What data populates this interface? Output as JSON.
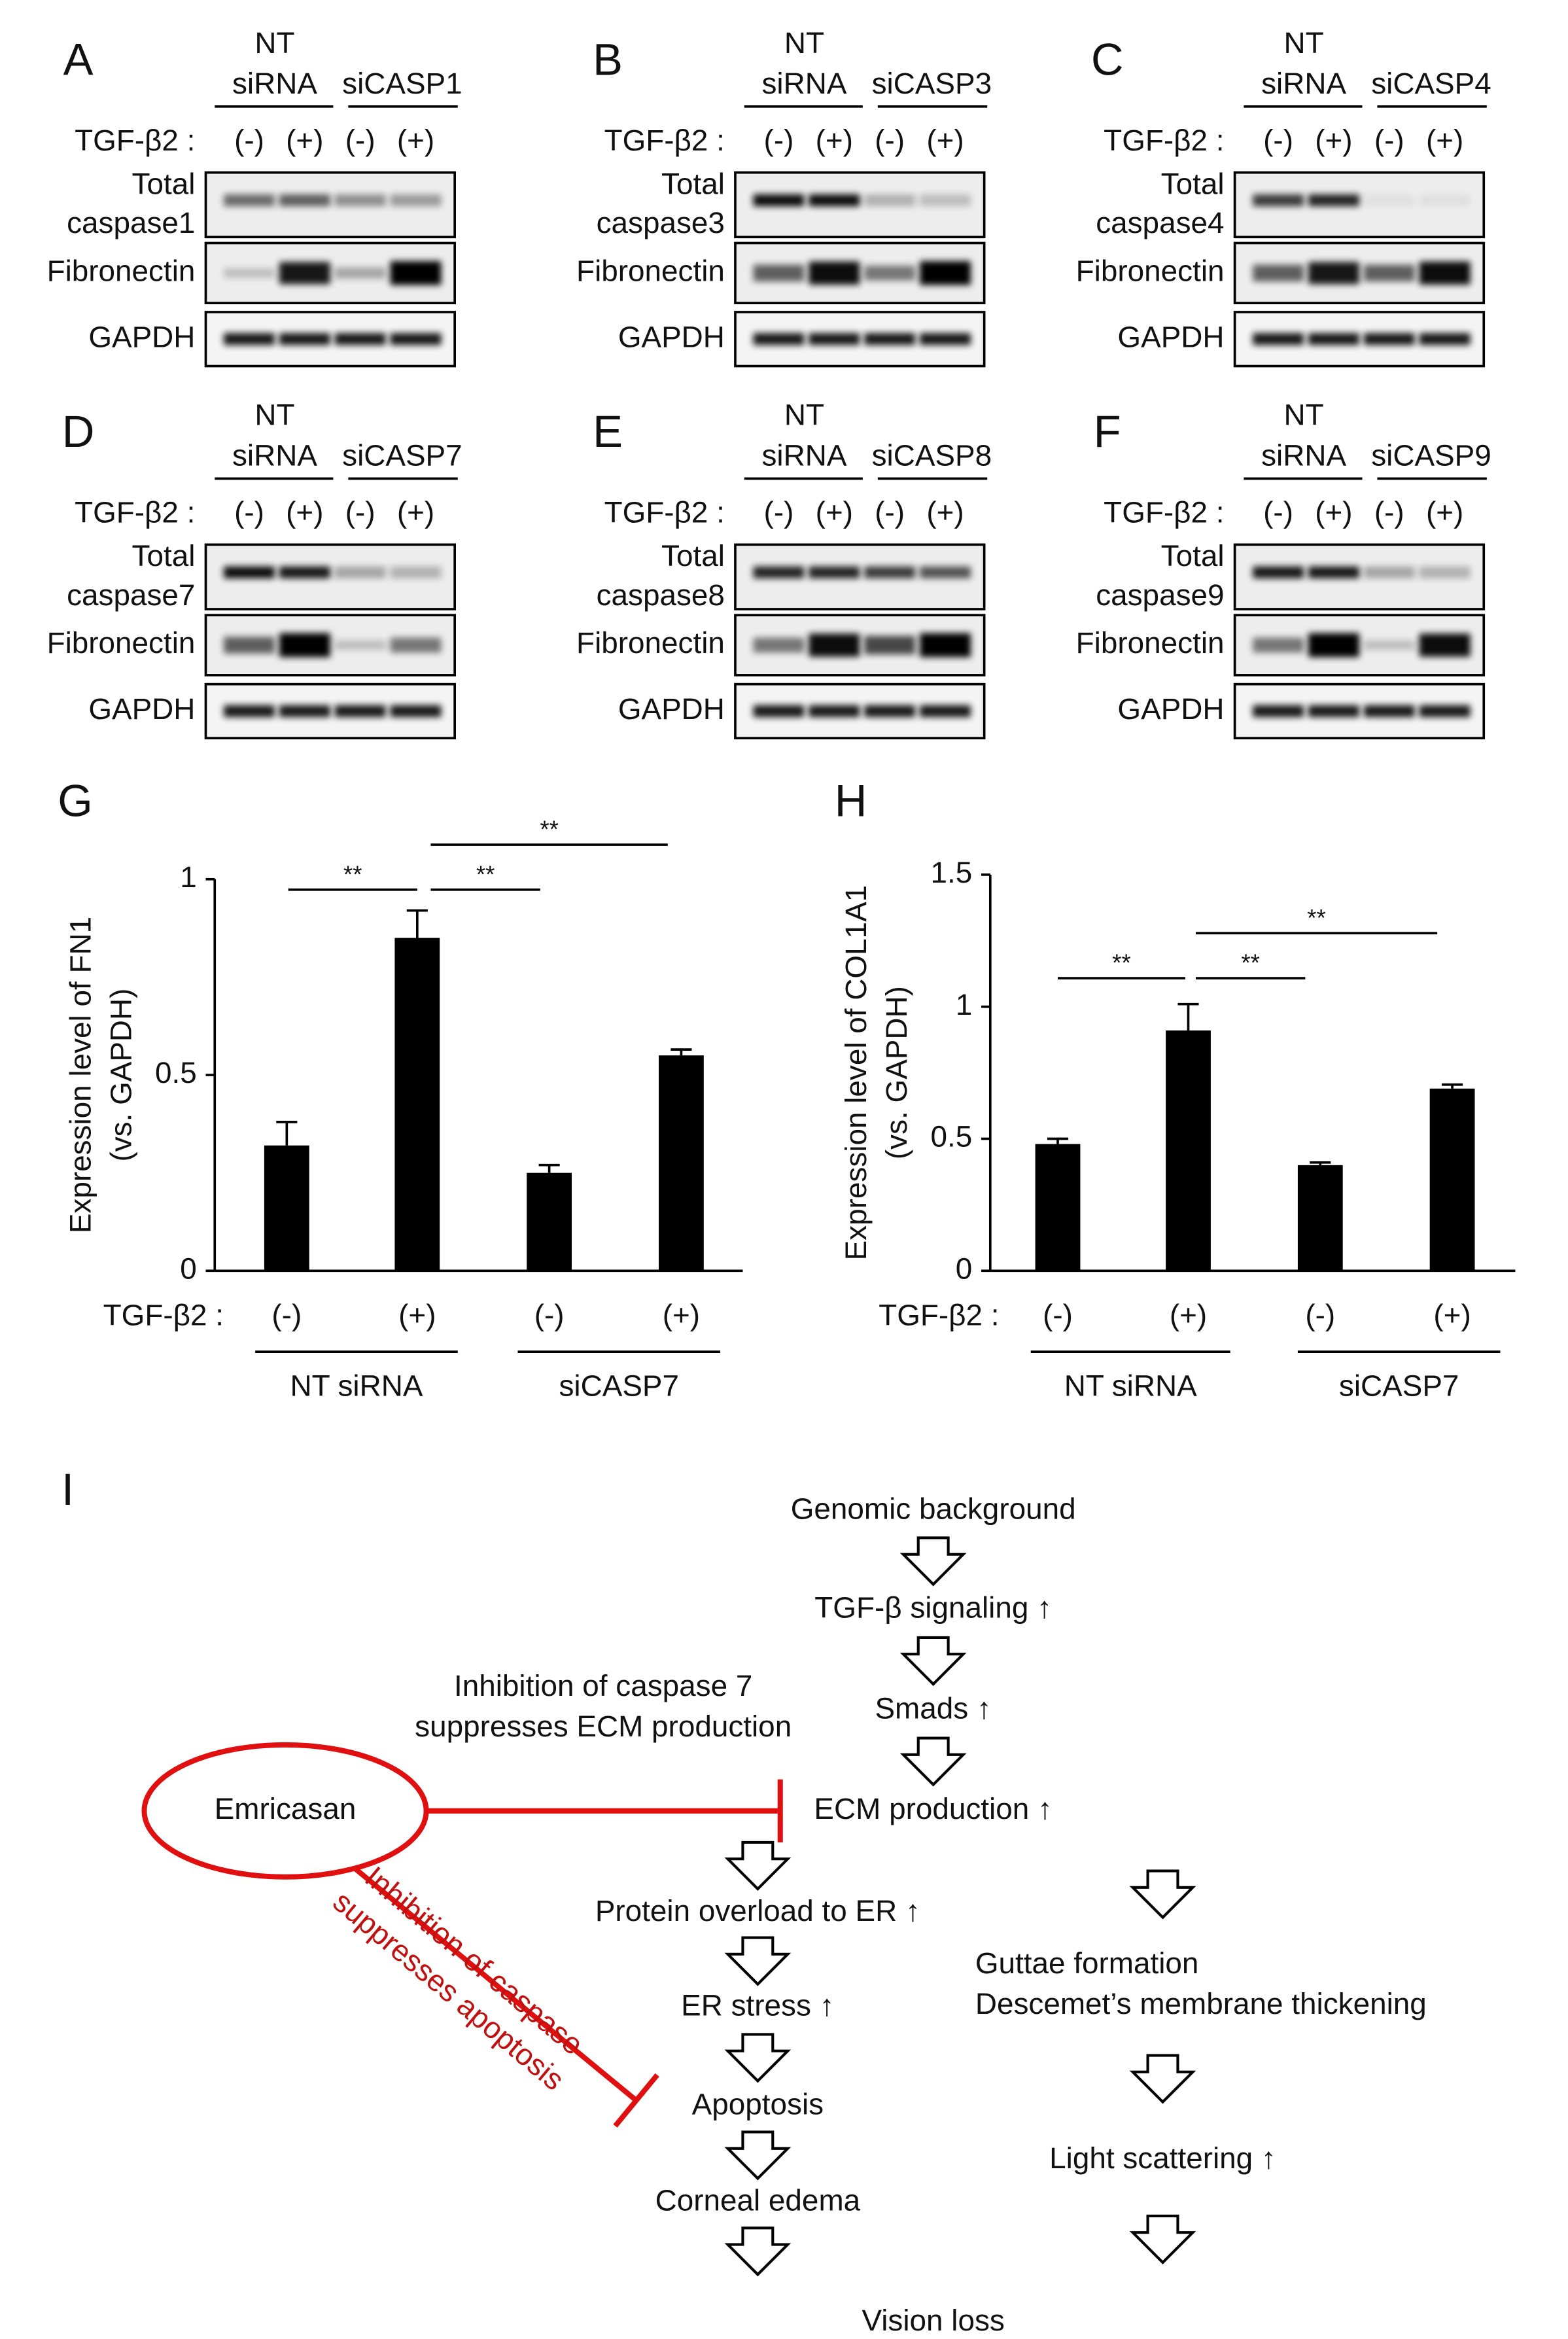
{
  "blots": [
    {
      "letter": "A",
      "group1": [
        "NT",
        "siRNA"
      ],
      "group2": "siCASP1",
      "treatment_label": "TGF-β2 :",
      "lanes": [
        "(-)",
        "(+)",
        "(-)",
        "(+)"
      ],
      "rows": [
        [
          "Total",
          "caspase1"
        ],
        [
          "Fibronectin"
        ],
        [
          "GAPDH"
        ]
      ]
    },
    {
      "letter": "B",
      "group1": [
        "NT",
        "siRNA"
      ],
      "group2": "siCASP3",
      "treatment_label": "TGF-β2 :",
      "lanes": [
        "(-)",
        "(+)",
        "(-)",
        "(+)"
      ],
      "rows": [
        [
          "Total",
          "caspase3"
        ],
        [
          "Fibronectin"
        ],
        [
          "GAPDH"
        ]
      ]
    },
    {
      "letter": "C",
      "group1": [
        "NT",
        "siRNA"
      ],
      "group2": "siCASP4",
      "treatment_label": "TGF-β2 :",
      "lanes": [
        "(-)",
        "(+)",
        "(-)",
        "(+)"
      ],
      "rows": [
        [
          "Total",
          "caspase4"
        ],
        [
          "Fibronectin"
        ],
        [
          "GAPDH"
        ]
      ]
    },
    {
      "letter": "D",
      "group1": [
        "NT",
        "siRNA"
      ],
      "group2": "siCASP7",
      "treatment_label": "TGF-β2 :",
      "lanes": [
        "(-)",
        "(+)",
        "(-)",
        "(+)"
      ],
      "rows": [
        [
          "Total",
          "caspase7"
        ],
        [
          "Fibronectin"
        ],
        [
          "GAPDH"
        ]
      ]
    },
    {
      "letter": "E",
      "group1": [
        "NT",
        "siRNA"
      ],
      "group2": "siCASP8",
      "treatment_label": "TGF-β2 :",
      "lanes": [
        "(-)",
        "(+)",
        "(-)",
        "(+)"
      ],
      "rows": [
        [
          "Total",
          "caspase8"
        ],
        [
          "Fibronectin"
        ],
        [
          "GAPDH"
        ]
      ]
    },
    {
      "letter": "F",
      "group1": [
        "NT",
        "siRNA"
      ],
      "group2": "siCASP9",
      "treatment_label": "TGF-β2 :",
      "lanes": [
        "(-)",
        "(+)",
        "(-)",
        "(+)"
      ],
      "rows": [
        [
          "Total",
          "caspase9"
        ],
        [
          "Fibronectin"
        ],
        [
          "GAPDH"
        ]
      ]
    }
  ],
  "chart_data": [
    {
      "type": "bar",
      "letter": "G",
      "ylabel": [
        "Expression level of FN1",
        "(vs. GAPDH)"
      ],
      "treatment_label": "TGF-β2 :",
      "categories": [
        "(-)",
        "(+)",
        "(-)",
        "(+)"
      ],
      "values": [
        0.32,
        0.85,
        0.25,
        0.55
      ],
      "errors": [
        0.06,
        0.07,
        0.02,
        0.015
      ],
      "color": "#000000",
      "ylim": [
        0,
        1
      ],
      "yticks": [
        0,
        0.5,
        1
      ],
      "groups": [
        "NT siRNA",
        "siCASP7"
      ],
      "significance_labels": [
        "**",
        "**",
        "**"
      ]
    },
    {
      "type": "bar",
      "letter": "H",
      "ylabel": [
        "Expression level of COL1A1",
        "(vs. GAPDH)"
      ],
      "treatment_label": "TGF-β2 :",
      "categories": [
        "(-)",
        "(+)",
        "(-)",
        "(+)"
      ],
      "values": [
        0.48,
        0.91,
        0.4,
        0.69
      ],
      "errors": [
        0.02,
        0.1,
        0.01,
        0.015
      ],
      "color": "#000000",
      "ylim": [
        0,
        1.5
      ],
      "yticks": [
        0,
        0.5,
        1,
        1.5
      ],
      "groups": [
        "NT siRNA",
        "siCASP7"
      ],
      "significance_labels": [
        "**",
        "**",
        "**"
      ]
    }
  ],
  "diagram": {
    "letter": "I",
    "main_path": [
      "Genomic background",
      "TGF-β signaling ↑",
      "Smads ↑",
      "ECM production ↑"
    ],
    "left_path": [
      "Protein overload to ER ↑",
      "ER stress ↑",
      "Apoptosis",
      "Corneal edema"
    ],
    "right_path": [
      [
        "Guttae formation",
        "Descemet’s membrane thickening"
      ],
      [
        "Light scattering ↑"
      ]
    ],
    "outcome": "Vision loss",
    "inhibitor": "Emricasan",
    "notes": [
      [
        "Inhibition of caspase 7",
        "suppresses ECM production"
      ],
      [
        "Inhibition of caspase",
        "suppresses apoptosis"
      ]
    ]
  }
}
